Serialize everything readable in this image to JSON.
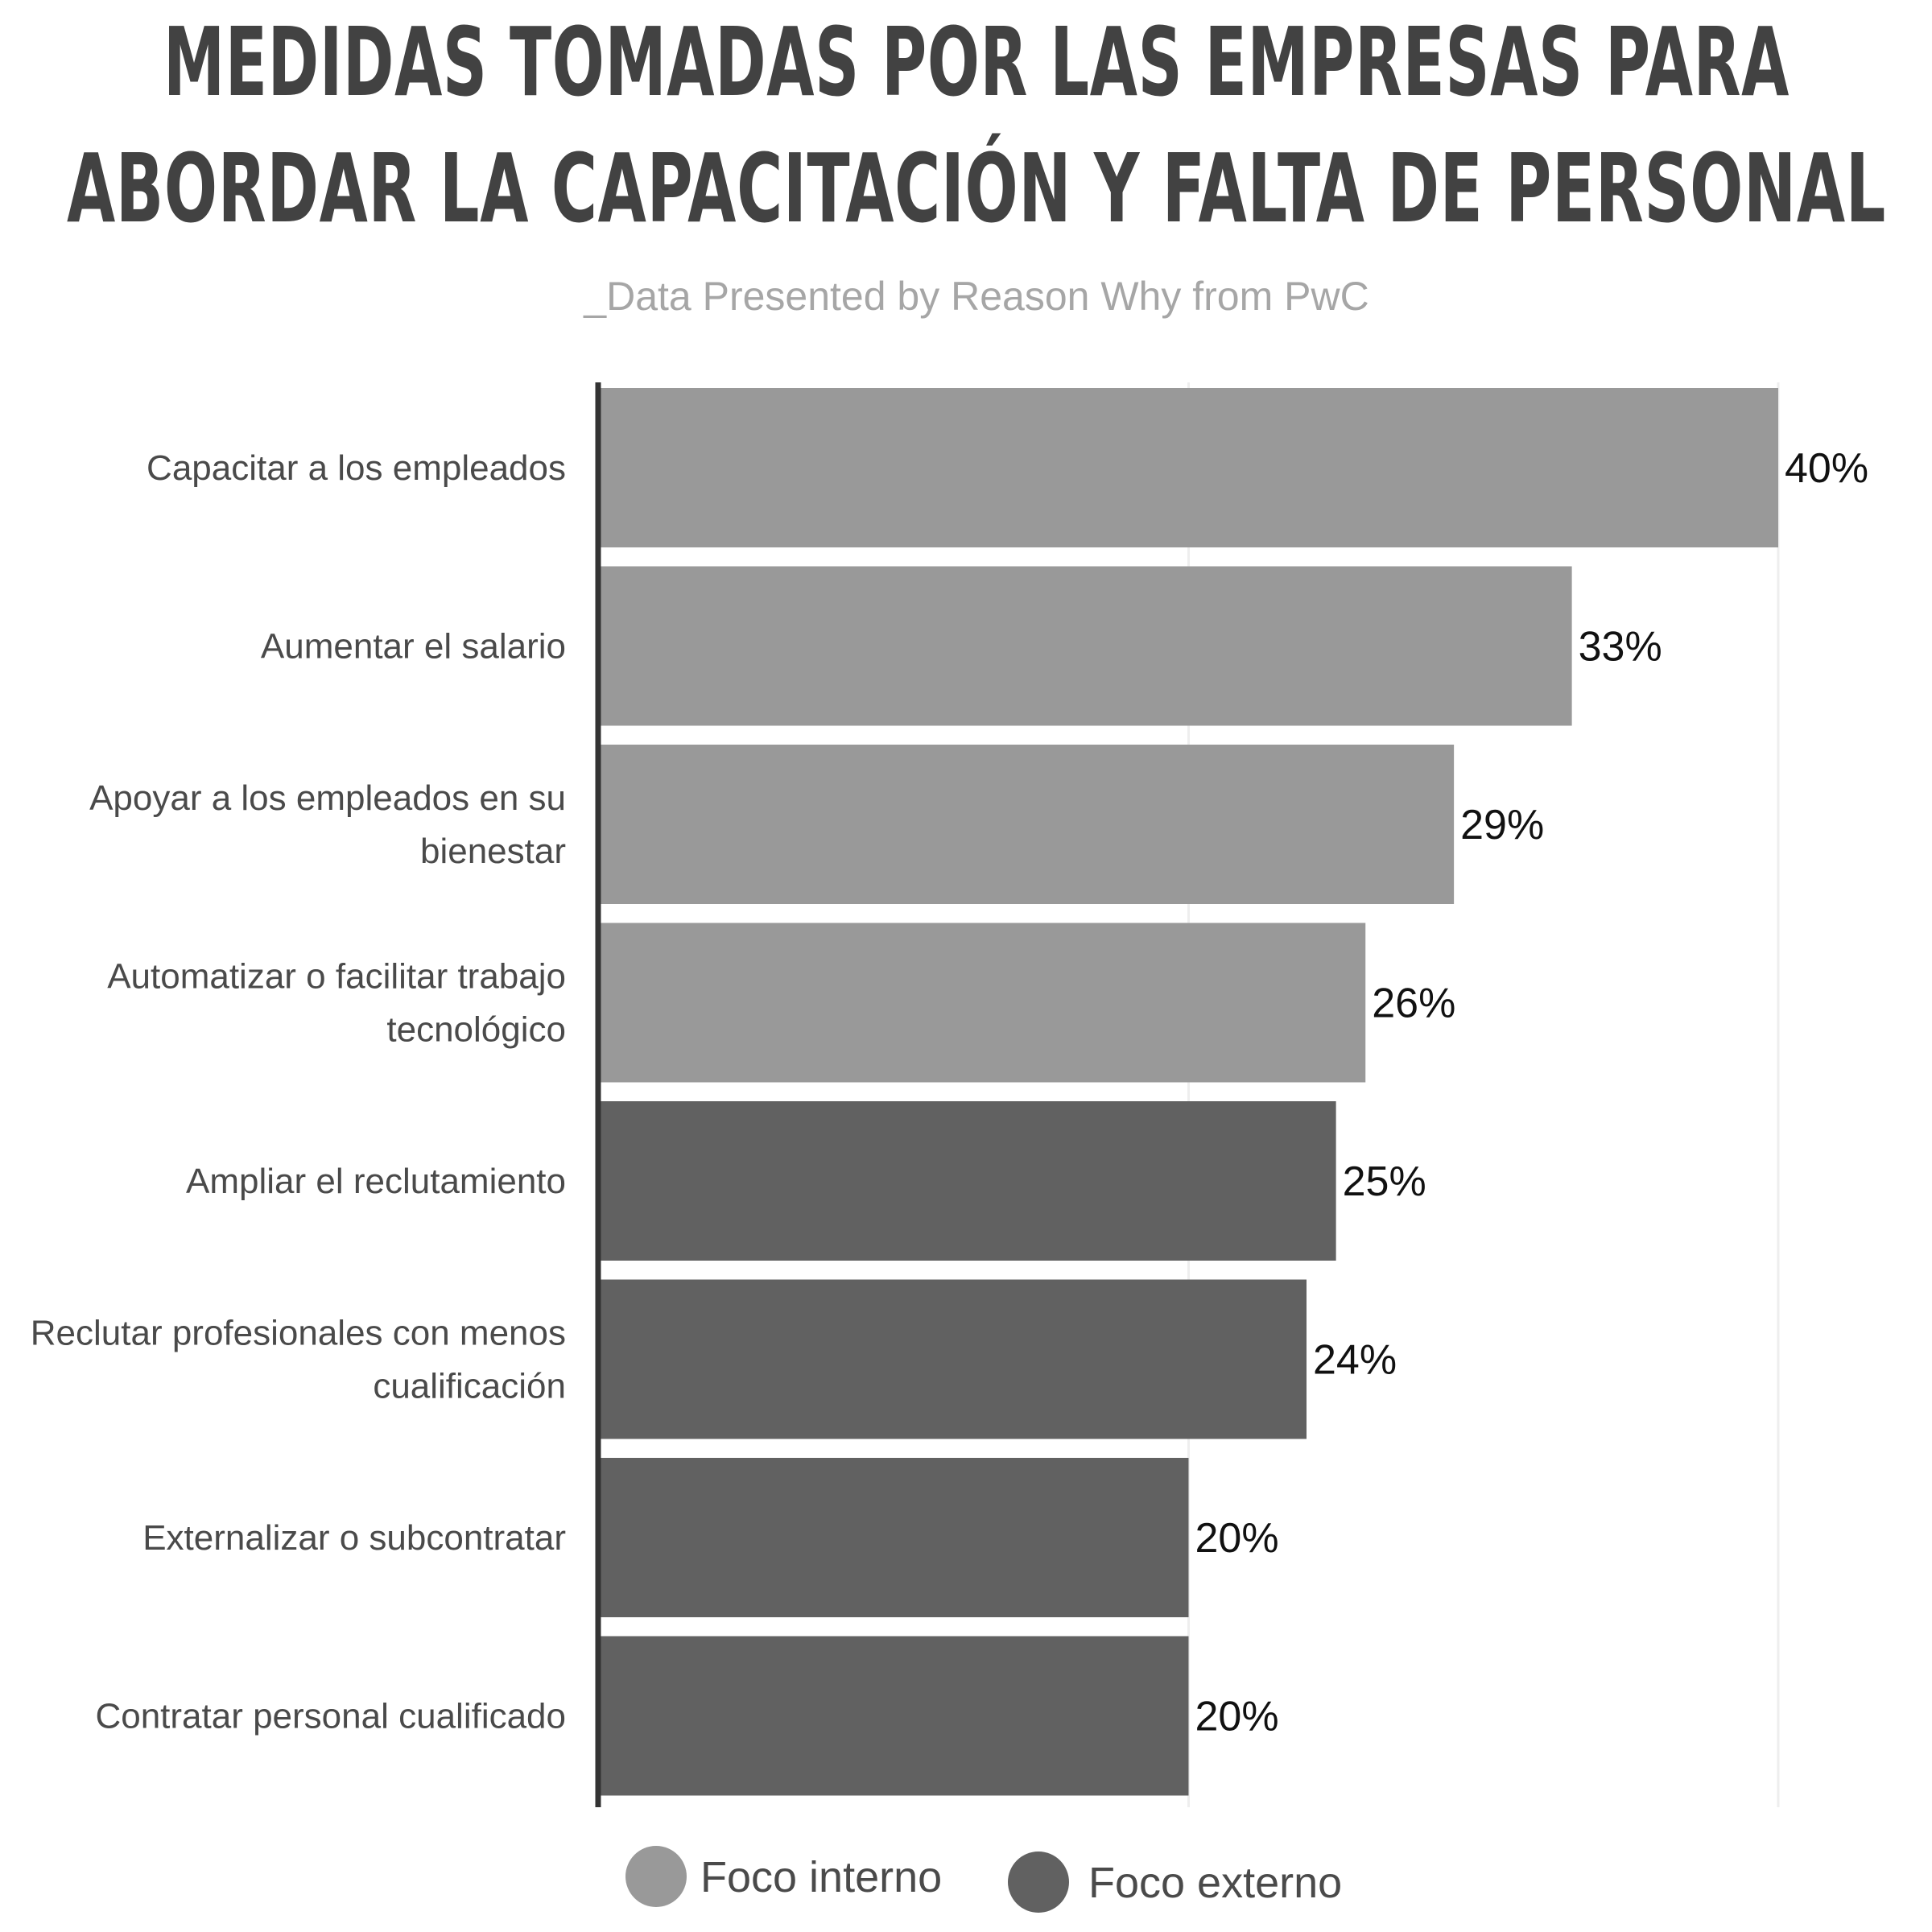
{
  "title_lines": [
    "MEDIDAS TOMADAS POR LAS EMPRESAS PARA",
    "ABORDAR LA CAPACITACIÓN Y FALTA DE PERSONAL"
  ],
  "subtitle": "_Data Presented by Reason Why from PwC",
  "colors": {
    "interno": "#999999",
    "externo": "#616161",
    "title": "#424242",
    "axis": "#333333",
    "grid": "#eeeeee"
  },
  "legend": [
    {
      "key": "interno",
      "label": "Foco interno"
    },
    {
      "key": "externo",
      "label": "Foco externo"
    }
  ],
  "chart_data": {
    "type": "bar",
    "orientation": "horizontal",
    "title": "MEDIDAS TOMADAS POR LAS EMPRESAS PARA ABORDAR LA CAPACITACIÓN Y FALTA DE PERSONAL",
    "subtitle": "_Data Presented by Reason Why from PwC",
    "xlim": [
      0,
      40
    ],
    "grid": true,
    "legend_position": "bottom",
    "categories": [
      [
        "Capacitar a los empleados"
      ],
      [
        "Aumentar el salario"
      ],
      [
        "Apoyar a los empleados en su",
        "bienestar"
      ],
      [
        "Automatizar o facilitar trabajo",
        "tecnológico"
      ],
      [
        "Ampliar el reclutamiento"
      ],
      [
        "Reclutar profesionales con menos",
        "cualificación"
      ],
      [
        "Externalizar o subcontratar"
      ],
      [
        "Contratar personal cualificado"
      ]
    ],
    "values": [
      40,
      33,
      29,
      26,
      25,
      24,
      20,
      20
    ],
    "value_labels": [
      "40%",
      "33%",
      "29%",
      "26%",
      "25%",
      "24%",
      "20%",
      "20%"
    ],
    "groups": [
      "interno",
      "interno",
      "interno",
      "interno",
      "externo",
      "externo",
      "externo",
      "externo"
    ]
  }
}
